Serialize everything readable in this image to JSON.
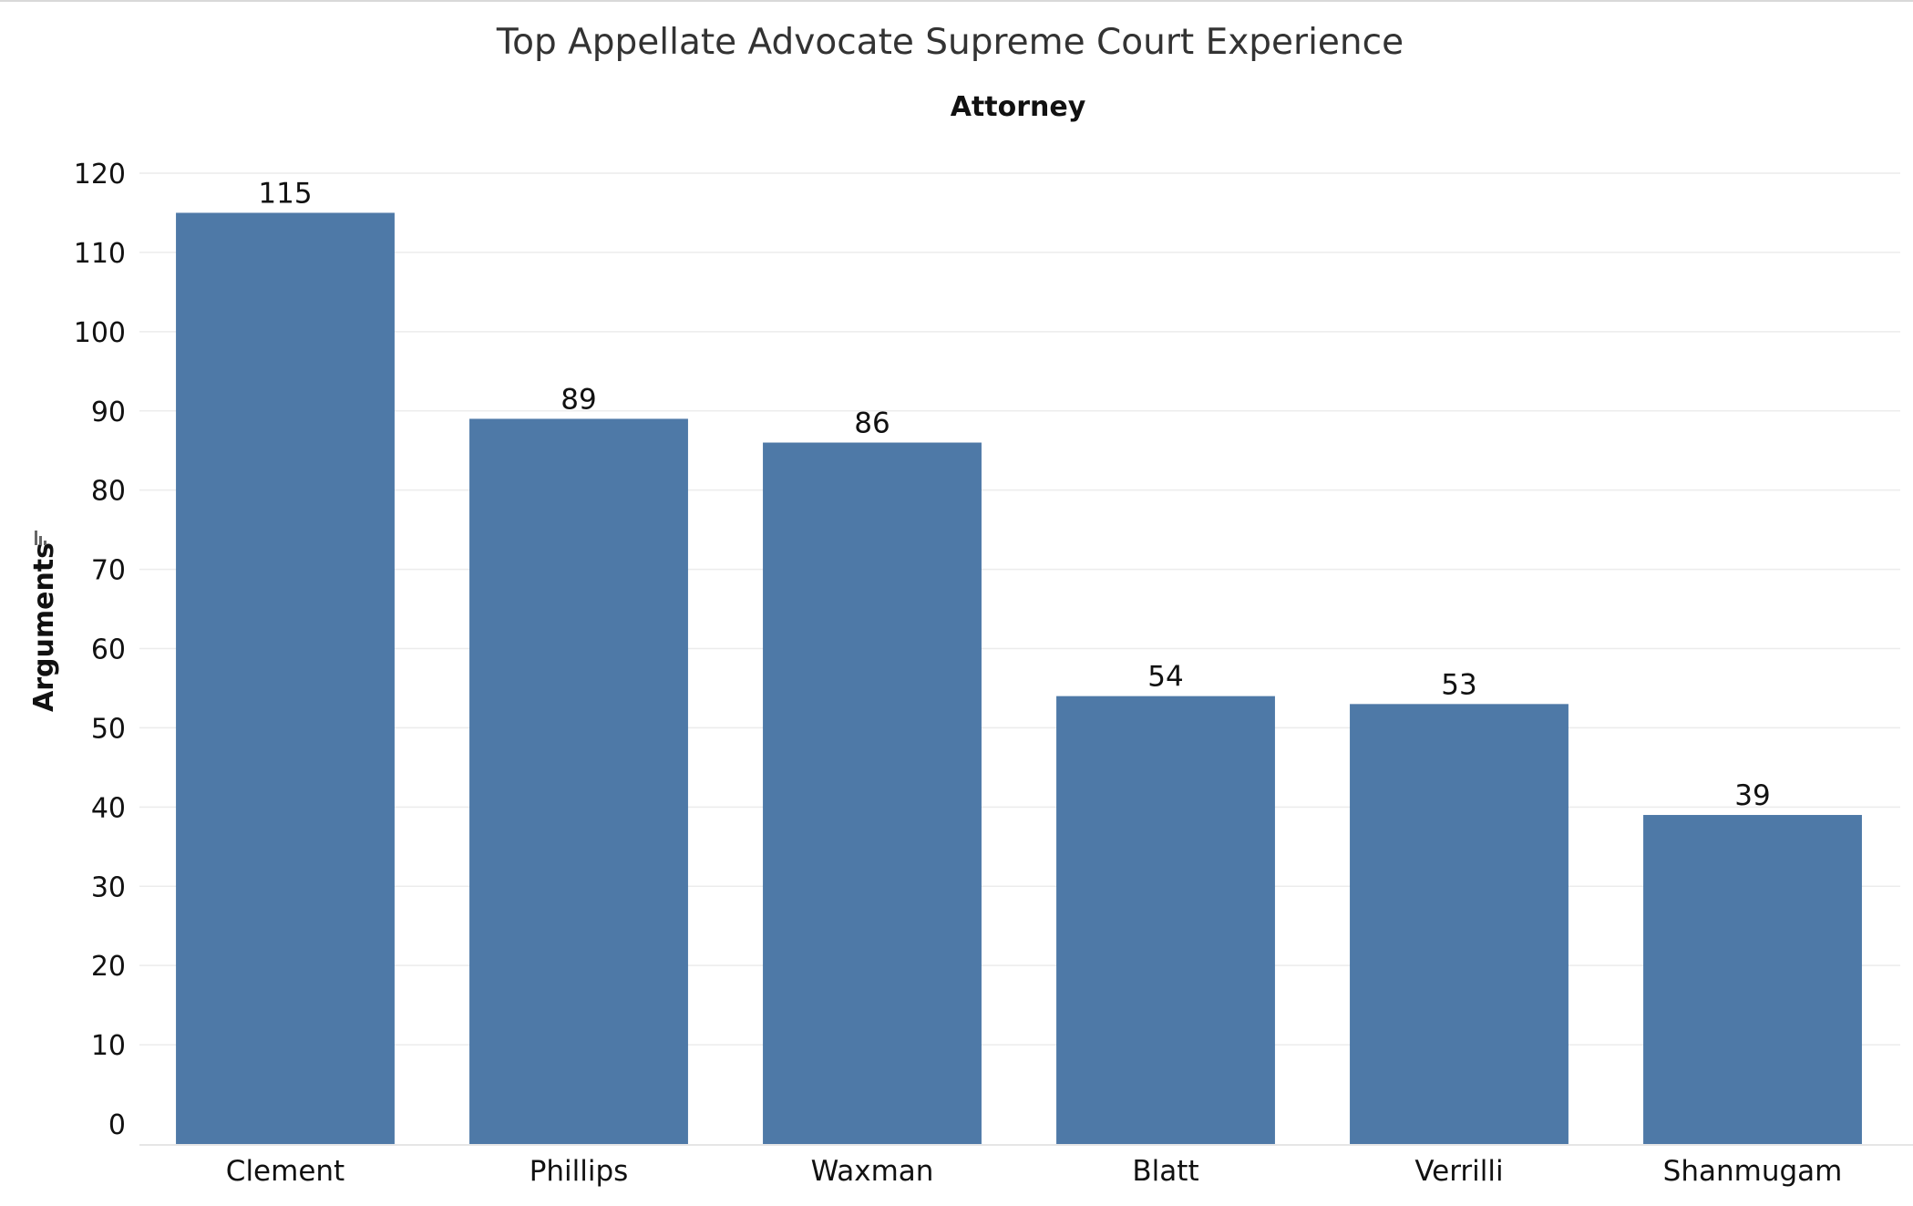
{
  "chart_data": {
    "type": "bar",
    "title": "Top Appellate Advocate Supreme Court Experience",
    "column_header": "Attorney",
    "ylabel": "Arguments",
    "categories": [
      "Clement",
      "Phillips",
      "Waxman",
      "Blatt",
      "Verrilli",
      "Shanmugam"
    ],
    "values": [
      115,
      89,
      86,
      54,
      53,
      39
    ],
    "data_labels": [
      "115",
      "89",
      "86",
      "54",
      "53",
      "39"
    ],
    "ylim": [
      0,
      120
    ],
    "yticks": [
      0,
      10,
      20,
      30,
      40,
      50,
      60,
      70,
      80,
      90,
      100,
      110,
      120
    ],
    "grid": true,
    "legend": "none",
    "bar_color": "#4e79a7",
    "sort_icon": "sort-descending-icon"
  }
}
